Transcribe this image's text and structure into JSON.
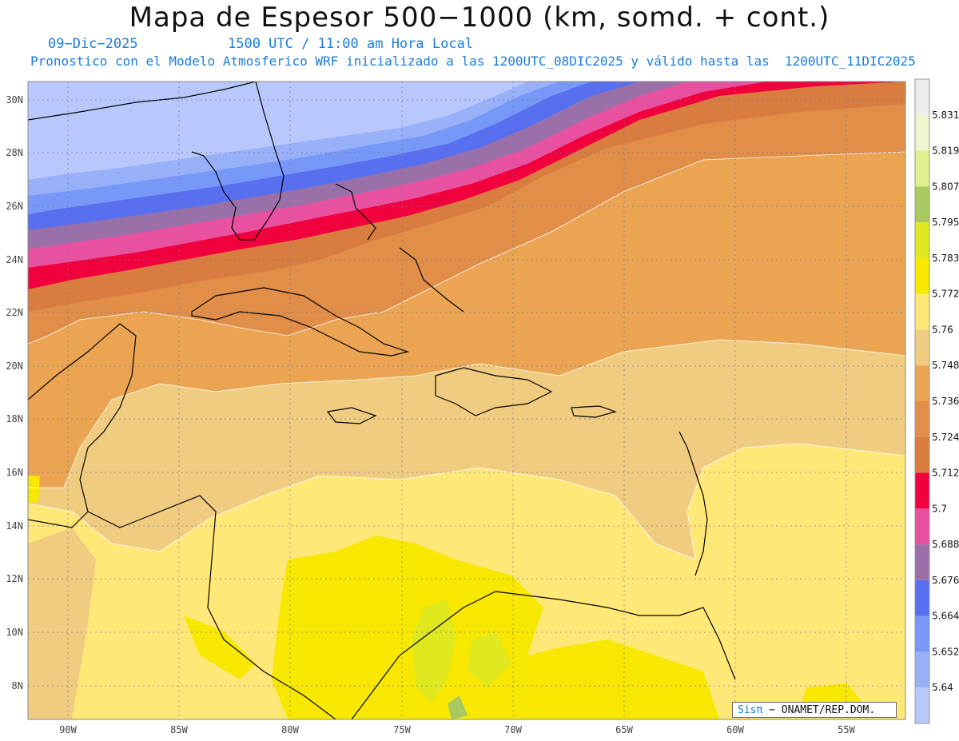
{
  "header": {
    "title": "Mapa de Espesor 500−1000 (km, somd. + cont.)",
    "date": "09−Dic−2025",
    "time": "1500 UTC / 11:00 am Hora Local",
    "model": "Pronostico con el Modelo Atmosferico WRF inicializado a las 1200UTC_08DIC2025 y válido hasta las  1200UTC_11DIC2025"
  },
  "axes": {
    "lat_labels": [
      "30N",
      "28N",
      "26N",
      "24N",
      "22N",
      "20N",
      "18N",
      "16N",
      "14N",
      "12N",
      "10N",
      "8N"
    ],
    "lon_labels": [
      "90W",
      "85W",
      "80W",
      "75W",
      "70W",
      "65W",
      "60W",
      "55W"
    ]
  },
  "colorbar": {
    "levels": [
      "5.831",
      "5.819",
      "5.807",
      "5.795",
      "5.783",
      "5.772",
      "5.76",
      "5.748",
      "5.736",
      "5.724",
      "5.712",
      "5.7",
      "5.688",
      "5.676",
      "5.664",
      "5.652",
      "5.64"
    ],
    "colors": [
      "#ececec",
      "#f0f5d0",
      "#e0f090",
      "#a8c860",
      "#e0e820",
      "#f8e800",
      "#ffe878",
      "#f0cc80",
      "#eaa452",
      "#e08e48",
      "#d87c40",
      "#f0003c",
      "#e850a0",
      "#9a70a8",
      "#5870f0",
      "#7898f8",
      "#98b0f8",
      "#b8c8fc"
    ]
  },
  "credit": {
    "brand": "Sisπ",
    "text": "− ONAMET/REP.DOM."
  }
}
